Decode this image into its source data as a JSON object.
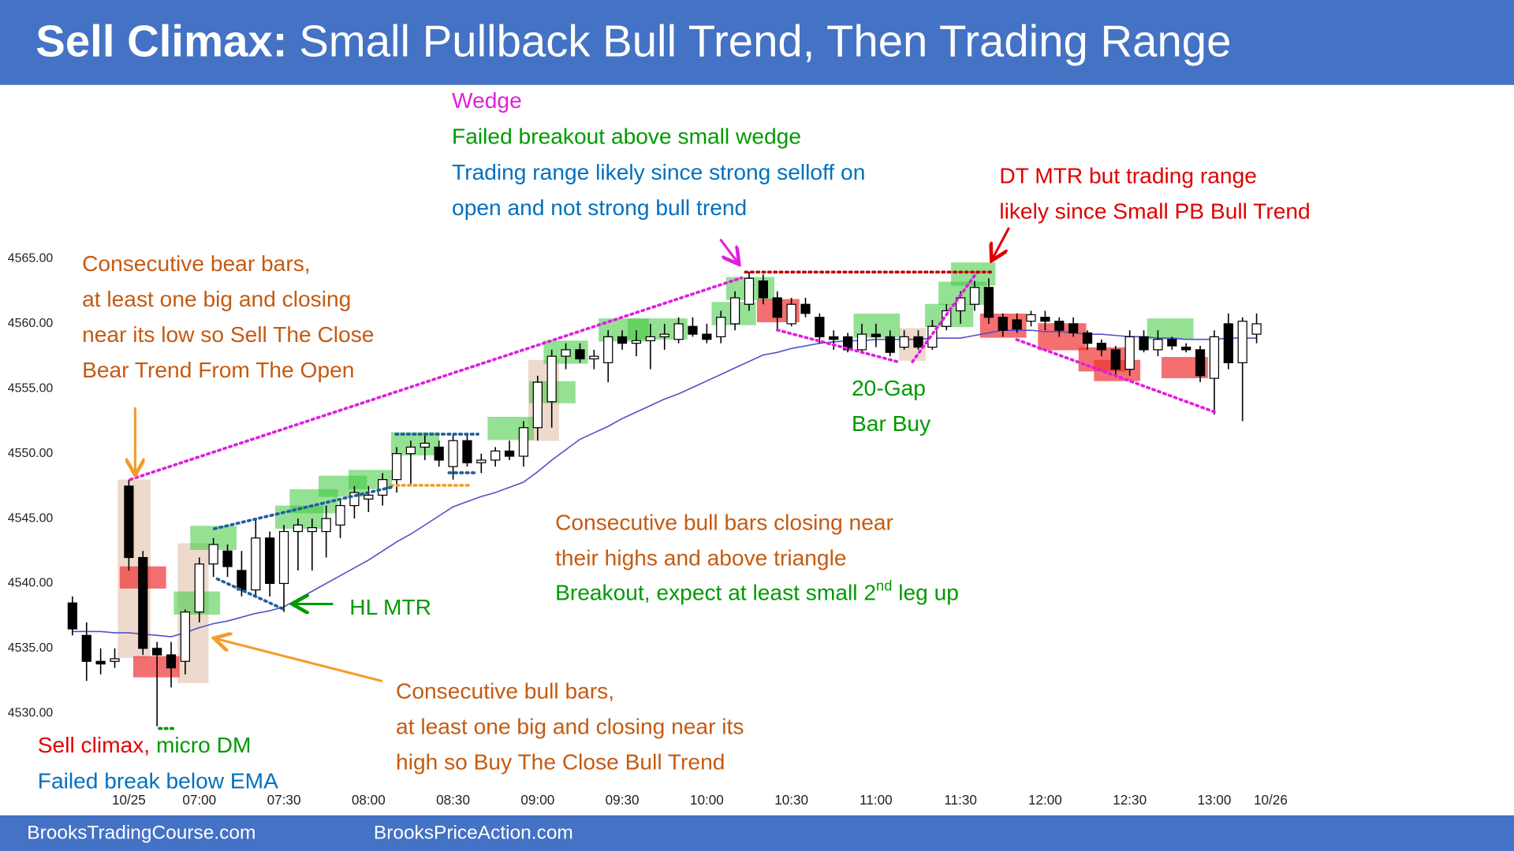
{
  "chart_data": {
    "type": "candlestick",
    "title_lead": "Sell Climax:",
    "title": "Small Pullback Bull Trend, Then Trading Range",
    "ylim": [
      4524,
      4578.4
    ],
    "yticks": [
      {
        "value": 4530,
        "label": "4530.00"
      },
      {
        "value": 4535,
        "label": "4535.00"
      },
      {
        "value": 4540,
        "label": "4540.00"
      },
      {
        "value": 4545,
        "label": "4545.00"
      },
      {
        "value": 4550,
        "label": "4550.00"
      },
      {
        "value": 4555,
        "label": "4555.00"
      },
      {
        "value": 4560,
        "label": "4560.00"
      },
      {
        "value": 4565,
        "label": "4565.00"
      }
    ],
    "xlim": [
      -5.14,
      102.26
    ],
    "xticks": [
      {
        "value": 4,
        "label": "10/25"
      },
      {
        "value": 9,
        "label": "07:00"
      },
      {
        "value": 15,
        "label": "07:30"
      },
      {
        "value": 21,
        "label": "08:00"
      },
      {
        "value": 27,
        "label": "08:30"
      },
      {
        "value": 33,
        "label": "09:00"
      },
      {
        "value": 39,
        "label": "09:30"
      },
      {
        "value": 45,
        "label": "10:00"
      },
      {
        "value": 51,
        "label": "10:30"
      },
      {
        "value": 57,
        "label": "11:00"
      },
      {
        "value": 63,
        "label": "11:30"
      },
      {
        "value": 69,
        "label": "12:00"
      },
      {
        "value": 75,
        "label": "12:30"
      },
      {
        "value": 81,
        "label": "13:00"
      },
      {
        "value": 85,
        "label": "10/26"
      }
    ],
    "grid": false,
    "bull_color": "#ffffff",
    "bear_color": "#000000",
    "open": [
      4538.5,
      4536,
      4534,
      4534,
      4547.5,
      4542,
      4535,
      4534.5,
      4534,
      4537.8,
      4541.5,
      4542.5,
      4541,
      4539.5,
      4543.5,
      4540,
      4544,
      4544,
      4544,
      4544.5,
      4546,
      4546.5,
      4546.8,
      4548,
      4550,
      4550.5,
      4550.5,
      4549,
      4551,
      4549.3,
      4549.5,
      4550.2,
      4549.8,
      4552,
      4554,
      4557.5,
      4558,
      4557.3,
      4557,
      4559,
      4558.5,
      4558.7,
      4559,
      4558.8,
      4559.8,
      4559.2,
      4559,
      4560,
      4561.5,
      4563.3,
      4562,
      4560,
      4561.5,
      4560.5,
      4559,
      4559,
      4558,
      4559.2,
      4559,
      4558.2,
      4559,
      4558.2,
      4559.8,
      4561,
      4561.5,
      4562.8,
      4560.5,
      4560.3,
      4560.2,
      4560.5,
      4560.2,
      4560,
      4559.3,
      4558.5,
      4558,
      4556.5,
      4559,
      4558,
      4558.8,
      4558.2,
      4558,
      4555.8,
      4560,
      4557,
      4559.2
    ],
    "high": [
      4539,
      4537,
      4535,
      4535,
      4548,
      4542.5,
      4535.5,
      4535.5,
      4538,
      4542,
      4543.5,
      4543,
      4542.5,
      4545,
      4544,
      4544.5,
      4545,
      4545,
      4546,
      4546.5,
      4547.5,
      4547.5,
      4548.5,
      4550.5,
      4551,
      4551.5,
      4551,
      4551.5,
      4551.5,
      4550,
      4550.5,
      4551,
      4552.5,
      4556,
      4558,
      4558.5,
      4558.5,
      4558,
      4559.5,
      4559.5,
      4559.5,
      4560,
      4560,
      4560.5,
      4560.5,
      4560,
      4561,
      4562.5,
      4564,
      4563.8,
      4562.5,
      4562,
      4562,
      4560.8,
      4559.5,
      4559.3,
      4560,
      4560,
      4559.5,
      4559.5,
      4559.5,
      4560.3,
      4561.5,
      4562.5,
      4563.3,
      4563.5,
      4560.8,
      4560.8,
      4561,
      4561,
      4560.5,
      4560.5,
      4559.5,
      4558.8,
      4558.3,
      4559.5,
      4559.5,
      4559.5,
      4559,
      4558.5,
      4558.3,
      4559.5,
      4560.8,
      4560.5,
      4560.8
    ],
    "low": [
      4536,
      4532.5,
      4533,
      4533.5,
      4541,
      4534.5,
      4529,
      4532,
      4533,
      4537,
      4540.5,
      4540.5,
      4539,
      4539,
      4539,
      4537.8,
      4541,
      4541,
      4542,
      4543.5,
      4545,
      4545.5,
      4546,
      4547,
      4547.5,
      4549.5,
      4549,
      4548,
      4549,
      4548.5,
      4549,
      4549.5,
      4549,
      4551,
      4552,
      4556.5,
      4557,
      4556.5,
      4555.5,
      4558,
      4557.5,
      4556.5,
      4558,
      4558.5,
      4559,
      4558.5,
      4558.5,
      4559.5,
      4561,
      4561.5,
      4559.5,
      4559.8,
      4560.5,
      4558.5,
      4558,
      4557.8,
      4557.8,
      4558.2,
      4557.5,
      4558,
      4558,
      4558,
      4559.5,
      4560,
      4561,
      4560,
      4559,
      4559.3,
      4559.8,
      4559.5,
      4559,
      4559,
      4558,
      4557.5,
      4556,
      4556,
      4557.8,
      4557.5,
      4558,
      4557.8,
      4555.5,
      4553,
      4556.5,
      4552.5,
      4558.5
    ],
    "close": [
      4536.5,
      4534,
      4533.8,
      4534.2,
      4542,
      4535,
      4534.5,
      4533.5,
      4537.8,
      4541.5,
      4543,
      4541.3,
      4539.5,
      4543.5,
      4540,
      4544,
      4544.5,
      4544.3,
      4545,
      4546,
      4547,
      4546.8,
      4548,
      4550,
      4550.5,
      4550.8,
      4549.5,
      4551,
      4549.3,
      4549.5,
      4550.2,
      4549.8,
      4552,
      4555.5,
      4557.5,
      4558,
      4557.3,
      4557.5,
      4559,
      4558.5,
      4558.7,
      4559,
      4559.2,
      4560,
      4559.2,
      4558.8,
      4560.5,
      4562,
      4563.5,
      4562,
      4560.5,
      4561.5,
      4560.8,
      4559,
      4558.8,
      4558,
      4559.2,
      4559,
      4557.8,
      4559,
      4558.2,
      4559.8,
      4561,
      4562,
      4562.8,
      4560.5,
      4559.5,
      4559.6,
      4560.7,
      4560.2,
      4559.5,
      4559.3,
      4558.5,
      4558,
      4556.5,
      4559,
      4558,
      4558.8,
      4558.3,
      4558,
      4556,
      4559,
      4557,
      4560.2,
      4560
    ],
    "ema": {
      "color": "#5050c8",
      "values": [
        4536.3,
        4536.3,
        4536.3,
        4536.2,
        4536.2,
        4536.1,
        4536.0,
        4535.9,
        4536.2,
        4536.6,
        4536.9,
        4537.1,
        4537.4,
        4537.7,
        4537.9,
        4538.2,
        4538.8,
        4539.4,
        4540.0,
        4540.6,
        4541.2,
        4541.8,
        4542.5,
        4543.2,
        4543.8,
        4544.5,
        4545.2,
        4545.9,
        4546.3,
        4546.7,
        4547.0,
        4547.4,
        4547.8,
        4548.6,
        4549.5,
        4550.3,
        4551.1,
        4551.6,
        4552.1,
        4552.7,
        4553.2,
        4553.7,
        4554.2,
        4554.6,
        4555.1,
        4555.6,
        4556.1,
        4556.6,
        4557.1,
        4557.6,
        4557.8,
        4558.1,
        4558.3,
        4558.5,
        4558.6,
        4558.7,
        4558.7,
        4558.8,
        4558.8,
        4558.8,
        4558.8,
        4558.9,
        4558.9,
        4558.9,
        4559.1,
        4559.3,
        4559.5,
        4559.5,
        4559.5,
        4559.4,
        4559.4,
        4559.3,
        4559.2,
        4559.2,
        4559.1,
        4559.0,
        4559.0,
        4558.9,
        4558.9,
        4558.8,
        4558.8,
        4558.8,
        4558.9,
        4558.9,
        4558.9
      ]
    },
    "annotations": [
      {
        "color": "#c55a11",
        "lines": [
          "Consecutive bear bars,",
          "at least one big and closing",
          "near its low so Sell The Close",
          "Bear Trend From The Open"
        ]
      },
      {
        "color": "#e01ee0",
        "lines": [
          "Wedge"
        ]
      },
      {
        "color": "#009a00",
        "lines": [
          "Failed breakout above small wedge"
        ]
      },
      {
        "color": "#0070c0",
        "lines": [
          "Trading range likely since strong selloff on",
          "open and not strong bull trend"
        ]
      },
      {
        "color": "#e00000",
        "lines": [
          "DT MTR but trading range",
          "likely since Small PB Bull Trend"
        ]
      },
      {
        "color": "#009a00",
        "lines": [
          "20-Gap",
          "Bar Buy"
        ]
      },
      {
        "color": "#009a00",
        "lines": [
          "HL MTR"
        ]
      },
      {
        "color": "#c55a11",
        "lines": [
          "Consecutive bull bars closing near",
          "their highs and above triangle"
        ]
      },
      {
        "color": "#009a00",
        "lines": [
          [
            "Breakout, expect at least small 2",
            {
              "text": "nd",
              "sup": true
            },
            " leg up"
          ]
        ]
      },
      {
        "color": "#c55a11",
        "lines": [
          "Consecutive bull bars,",
          "at least one big and closing near its",
          "high so Buy The Close Bull Trend"
        ]
      },
      {
        "color": "#e00000",
        "lines": [
          [
            "Sell climax,",
            {
              "text": " micro DM",
              "color": "#009a00"
            }
          ]
        ]
      },
      {
        "color": "#0070c0",
        "lines": [
          "Failed break below EMA"
        ]
      }
    ]
  },
  "footer": [
    "BrooksTradingCourse.com",
    "BrooksPriceAction.com"
  ]
}
